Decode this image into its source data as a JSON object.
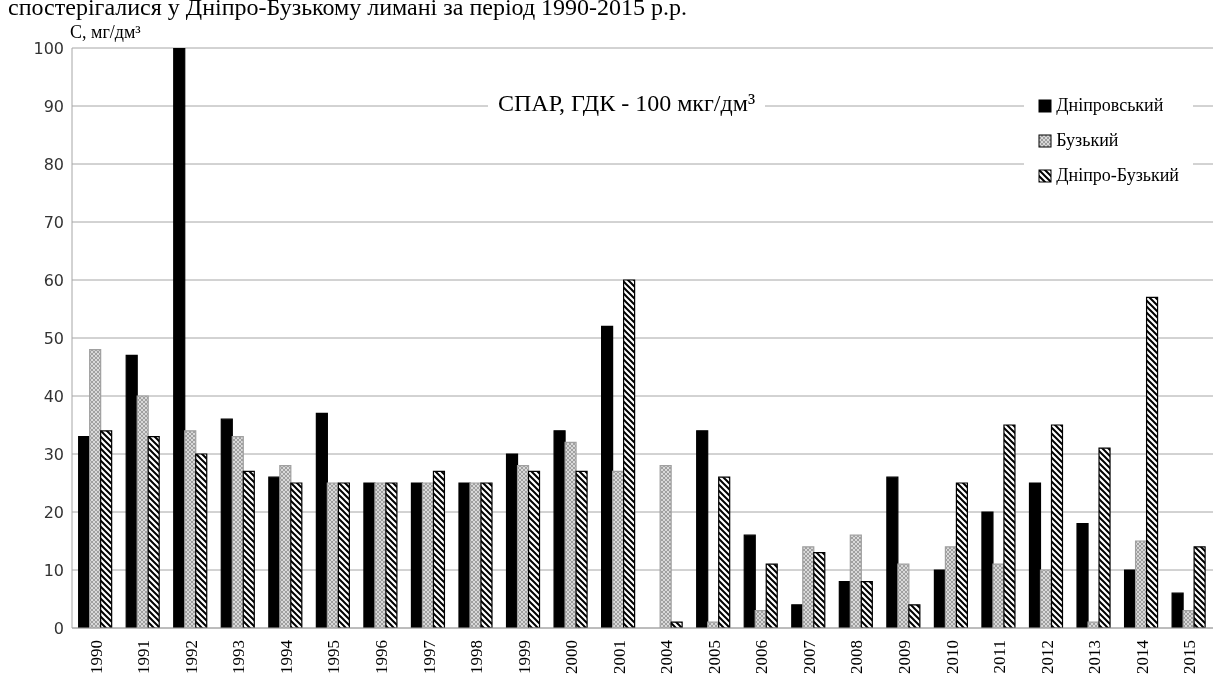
{
  "chart_data": {
    "type": "bar",
    "title": "спостерігалися у Дніпро-Бузькому лимані за період 1990-2015 р.р.",
    "ylabel": "С, мг/дм³",
    "annotations": [
      "СПАР, ГДК - 100 мкг/дм³"
    ],
    "categories": [
      "1990",
      "1991",
      "1992",
      "1993",
      "1994",
      "1995",
      "1996",
      "1997",
      "1998",
      "1999",
      "2000",
      "2001",
      "2004",
      "2005",
      "2006",
      "2007",
      "2008",
      "2009",
      "2010",
      "2011",
      "2012",
      "2013",
      "2014",
      "2015"
    ],
    "series": [
      {
        "name": "Дніпровський",
        "color": "#000000",
        "values": [
          33,
          47,
          100,
          36,
          26,
          37,
          25,
          25,
          25,
          30,
          34,
          52,
          0,
          34,
          16,
          4,
          8,
          26,
          10,
          20,
          25,
          18,
          10,
          6
        ]
      },
      {
        "name": "Бузький",
        "color": "#a0a0a0",
        "values": [
          48,
          40,
          34,
          33,
          28,
          25,
          25,
          25,
          25,
          28,
          32,
          27,
          28,
          1,
          3,
          14,
          16,
          11,
          14,
          11,
          10,
          1,
          15,
          3
        ]
      },
      {
        "name": "Дніпро-Бузький",
        "color": "#000000",
        "values": [
          34,
          33,
          30,
          27,
          25,
          25,
          25,
          27,
          25,
          27,
          27,
          60,
          1,
          26,
          11,
          13,
          8,
          4,
          25,
          35,
          35,
          31,
          57,
          14
        ]
      }
    ],
    "ylim": [
      0,
      100
    ],
    "yticks": [
      0,
      10,
      20,
      30,
      40,
      50,
      60,
      70,
      80,
      90,
      100
    ],
    "grid": "y",
    "legend": "top right"
  }
}
